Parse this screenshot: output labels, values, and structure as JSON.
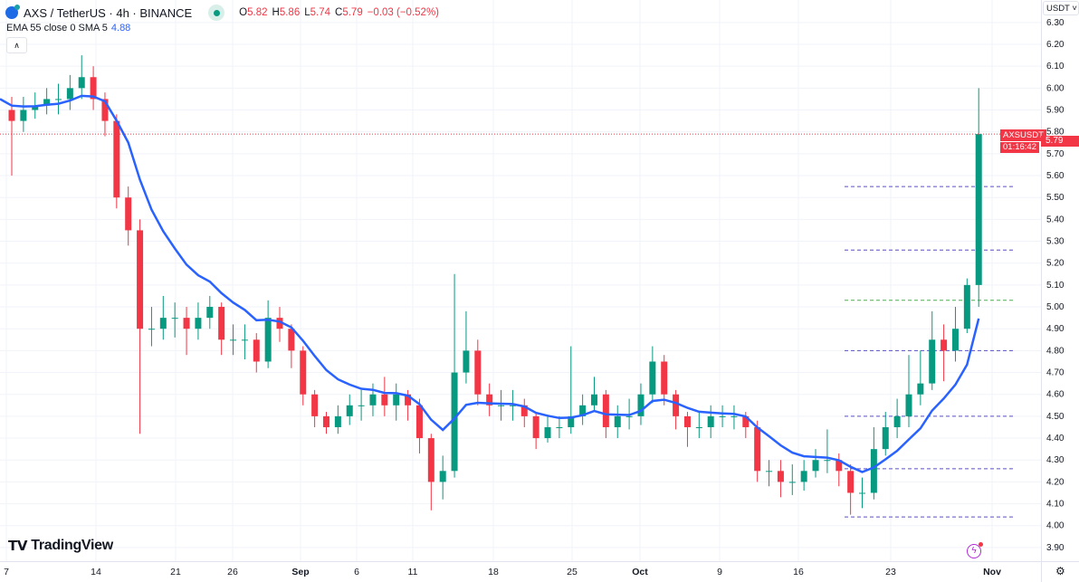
{
  "header": {
    "symbol": "AXS / TetherUS · 4h · BINANCE",
    "ohlc": {
      "o_label": "O",
      "o": "5.82",
      "h_label": "H",
      "h": "5.86",
      "l_label": "L",
      "l": "5.74",
      "c_label": "C",
      "c": "5.79",
      "change": "−0.03 (−0.52%)"
    },
    "indicator": "EMA 55 close 0 SMA 5",
    "indicator_value": "4.88",
    "collapse_icon": "chevron-up-icon"
  },
  "price_scale": {
    "currency": "USDT",
    "symbol_tag": "AXSUSDT",
    "last_price": "5.79",
    "countdown": "01:16:42"
  },
  "logo": "TradingView",
  "colors": {
    "up": "#089981",
    "down": "#f23645",
    "ema": "#2962ff",
    "grid": "#f0f3fa",
    "level_purple": "#5b4fc7",
    "level_green": "#4caf50"
  },
  "chart_data": {
    "type": "candlestick",
    "interval": "4h (drawn daily)",
    "start_date": "Aug 7",
    "x_tick_labels": [
      "7",
      "14",
      "21",
      "26",
      "Sep",
      "6",
      "11",
      "18",
      "25",
      "Oct",
      "9",
      "16",
      "23",
      "Nov"
    ],
    "y_tick_labels": [
      "6.30",
      "6.20",
      "6.10",
      "6.00",
      "5.90",
      "5.80",
      "5.70",
      "5.60",
      "5.50",
      "5.40",
      "5.30",
      "5.20",
      "5.10",
      "5.00",
      "4.90",
      "4.80",
      "4.70",
      "4.60",
      "4.50",
      "4.40",
      "4.30",
      "4.20",
      "4.10",
      "4.00",
      "3.90"
    ],
    "ylim": [
      3.85,
      6.32
    ],
    "first_open": 5.9,
    "close": [
      5.85,
      5.9,
      5.92,
      5.95,
      5.95,
      6.0,
      6.05,
      5.95,
      5.85,
      5.5,
      5.35,
      4.9,
      4.9,
      4.95,
      4.95,
      4.9,
      4.95,
      5.0,
      4.85,
      4.85,
      4.85,
      4.75,
      4.95,
      4.9,
      4.8,
      4.6,
      4.5,
      4.45,
      4.5,
      4.55,
      4.55,
      4.6,
      4.55,
      4.6,
      4.55,
      4.4,
      4.2,
      4.25,
      4.7,
      4.8,
      4.6,
      4.55,
      4.55,
      4.55,
      4.5,
      4.4,
      4.45,
      4.45,
      4.5,
      4.55,
      4.6,
      4.45,
      4.5,
      4.5,
      4.6,
      4.75,
      4.6,
      4.5,
      4.45,
      4.45,
      4.5,
      4.5,
      4.5,
      4.45,
      4.25,
      4.25,
      4.2,
      4.2,
      4.25,
      4.3,
      4.3,
      4.25,
      4.15,
      4.15,
      4.35,
      4.45,
      4.5,
      4.6,
      4.65,
      4.85,
      4.8,
      4.9,
      5.1,
      5.79
    ],
    "high": [
      5.96,
      5.96,
      5.98,
      6.0,
      6.02,
      6.06,
      6.15,
      6.1,
      5.98,
      5.88,
      5.55,
      5.4,
      5.0,
      5.05,
      5.02,
      5.0,
      5.02,
      5.05,
      5.02,
      4.92,
      4.92,
      4.88,
      5.03,
      5.0,
      4.92,
      4.82,
      4.62,
      4.52,
      4.55,
      4.6,
      4.62,
      4.65,
      4.68,
      4.65,
      4.62,
      4.58,
      4.42,
      4.32,
      5.15,
      4.98,
      4.85,
      4.65,
      4.62,
      4.62,
      4.58,
      4.52,
      4.5,
      4.5,
      4.82,
      4.6,
      4.68,
      4.62,
      4.55,
      4.58,
      4.65,
      4.82,
      4.78,
      4.62,
      4.52,
      4.52,
      4.55,
      4.55,
      4.55,
      4.52,
      4.48,
      4.3,
      4.3,
      4.28,
      4.3,
      4.35,
      4.44,
      4.33,
      4.28,
      4.22,
      4.45,
      4.52,
      4.58,
      4.78,
      4.8,
      4.98,
      4.92,
      5.0,
      5.13,
      6.0
    ],
    "low": [
      5.6,
      5.8,
      5.86,
      5.88,
      5.88,
      5.9,
      5.95,
      5.9,
      5.78,
      5.45,
      5.28,
      4.42,
      4.82,
      4.85,
      4.86,
      4.78,
      4.85,
      4.9,
      4.78,
      4.78,
      4.76,
      4.7,
      4.72,
      4.84,
      4.72,
      4.55,
      4.45,
      4.42,
      4.42,
      4.46,
      4.48,
      4.5,
      4.5,
      4.48,
      4.48,
      4.33,
      4.07,
      4.12,
      4.22,
      4.65,
      4.55,
      4.5,
      4.48,
      4.48,
      4.45,
      4.35,
      4.38,
      4.4,
      4.42,
      4.46,
      4.52,
      4.4,
      4.4,
      4.44,
      4.46,
      4.56,
      4.55,
      4.44,
      4.36,
      4.4,
      4.4,
      4.45,
      4.44,
      4.4,
      4.2,
      4.18,
      4.13,
      4.14,
      4.16,
      4.22,
      4.24,
      4.18,
      4.05,
      4.08,
      4.12,
      4.32,
      4.4,
      4.45,
      4.55,
      4.62,
      4.66,
      4.75,
      4.88,
      5.0
    ],
    "ema_series_name": "EMA 55 close 0 SMA 5",
    "last_price": 5.79,
    "levels": [
      {
        "price": 5.55,
        "color": "purple"
      },
      {
        "price": 5.26,
        "color": "purple"
      },
      {
        "price": 5.03,
        "color": "green"
      },
      {
        "price": 4.8,
        "color": "purple"
      },
      {
        "price": 4.5,
        "color": "purple"
      },
      {
        "price": 4.26,
        "color": "purple"
      },
      {
        "price": 4.04,
        "color": "purple"
      }
    ],
    "grid": true
  }
}
